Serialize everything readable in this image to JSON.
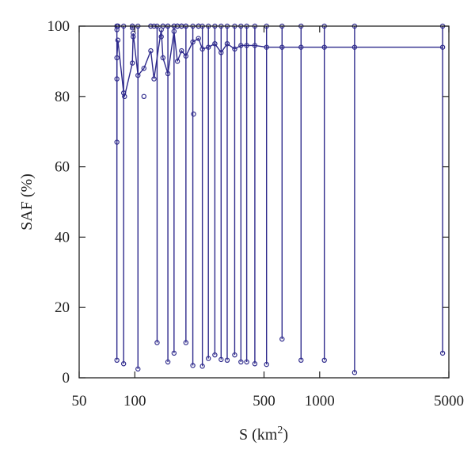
{
  "chart_data": {
    "type": "line",
    "title": "",
    "xlabel": "S (km",
    "xlabel_sup": "2",
    "xlabel_close": ")",
    "ylabel": "SAF (%)",
    "x_scale": "log",
    "xlim": [
      50,
      5000
    ],
    "ylim": [
      0,
      100
    ],
    "x_ticks": [
      50,
      100,
      500,
      1000,
      5000
    ],
    "x_tick_labels": [
      "50",
      "100",
      "500",
      "1000",
      "5000"
    ],
    "y_ticks": [
      0,
      20,
      40,
      60,
      80,
      100
    ],
    "y_tick_labels": [
      "0",
      "20",
      "40",
      "60",
      "80",
      "100"
    ],
    "grid": false,
    "legend": "none",
    "line_color": "#2e2a8c",
    "series": [
      {
        "x": [
          80,
          80,
          80,
          81,
          87,
          88,
          97,
          98,
          104,
          112,
          122,
          127,
          139,
          142,
          151,
          163,
          170,
          179,
          189,
          206,
          221,
          232,
          250,
          271,
          293,
          316,
          347,
          375,
          403,
          446,
          516,
          626,
          793,
          1060,
          1545,
          4625
        ],
        "y": [
          67,
          85,
          91,
          96,
          81,
          80,
          89.5,
          98,
          86,
          88,
          93,
          85,
          99,
          91,
          86.5,
          98.5,
          90,
          93,
          91.5,
          95.5,
          96.5,
          93.5,
          94,
          95,
          92.5,
          95,
          93.5,
          94.5,
          94.5,
          94.5,
          94,
          94,
          94,
          94,
          94,
          94
        ]
      }
    ],
    "drop_lines": {
      "top_y": 100,
      "x": [
        80,
        81,
        87,
        97,
        104,
        122,
        132,
        142,
        151,
        163,
        170,
        179,
        189,
        206,
        221,
        232,
        250,
        271,
        293,
        316,
        347,
        375,
        403,
        446,
        516,
        626,
        793,
        1060,
        1545,
        4625
      ],
      "bottom_y": [
        5,
        100,
        4,
        99.5,
        2.5,
        100,
        10,
        100,
        4.5,
        7,
        100,
        100,
        10,
        3.5,
        100,
        3.3,
        5.5,
        6.5,
        5.2,
        5,
        6.5,
        4.5,
        4.5,
        4,
        3.8,
        11,
        5,
        5,
        1.5,
        7
      ]
    },
    "extra_points": [
      {
        "x": 80,
        "y": 100
      },
      {
        "x": 80,
        "y": 99
      },
      {
        "x": 97,
        "y": 100
      },
      {
        "x": 98,
        "y": 97
      },
      {
        "x": 112,
        "y": 80
      },
      {
        "x": 127,
        "y": 100
      },
      {
        "x": 139,
        "y": 97
      },
      {
        "x": 151,
        "y": 100
      },
      {
        "x": 163,
        "y": 100
      },
      {
        "x": 170,
        "y": 100
      },
      {
        "x": 179,
        "y": 100
      },
      {
        "x": 189,
        "y": 100
      },
      {
        "x": 208,
        "y": 75
      },
      {
        "x": 221,
        "y": 100
      }
    ]
  }
}
